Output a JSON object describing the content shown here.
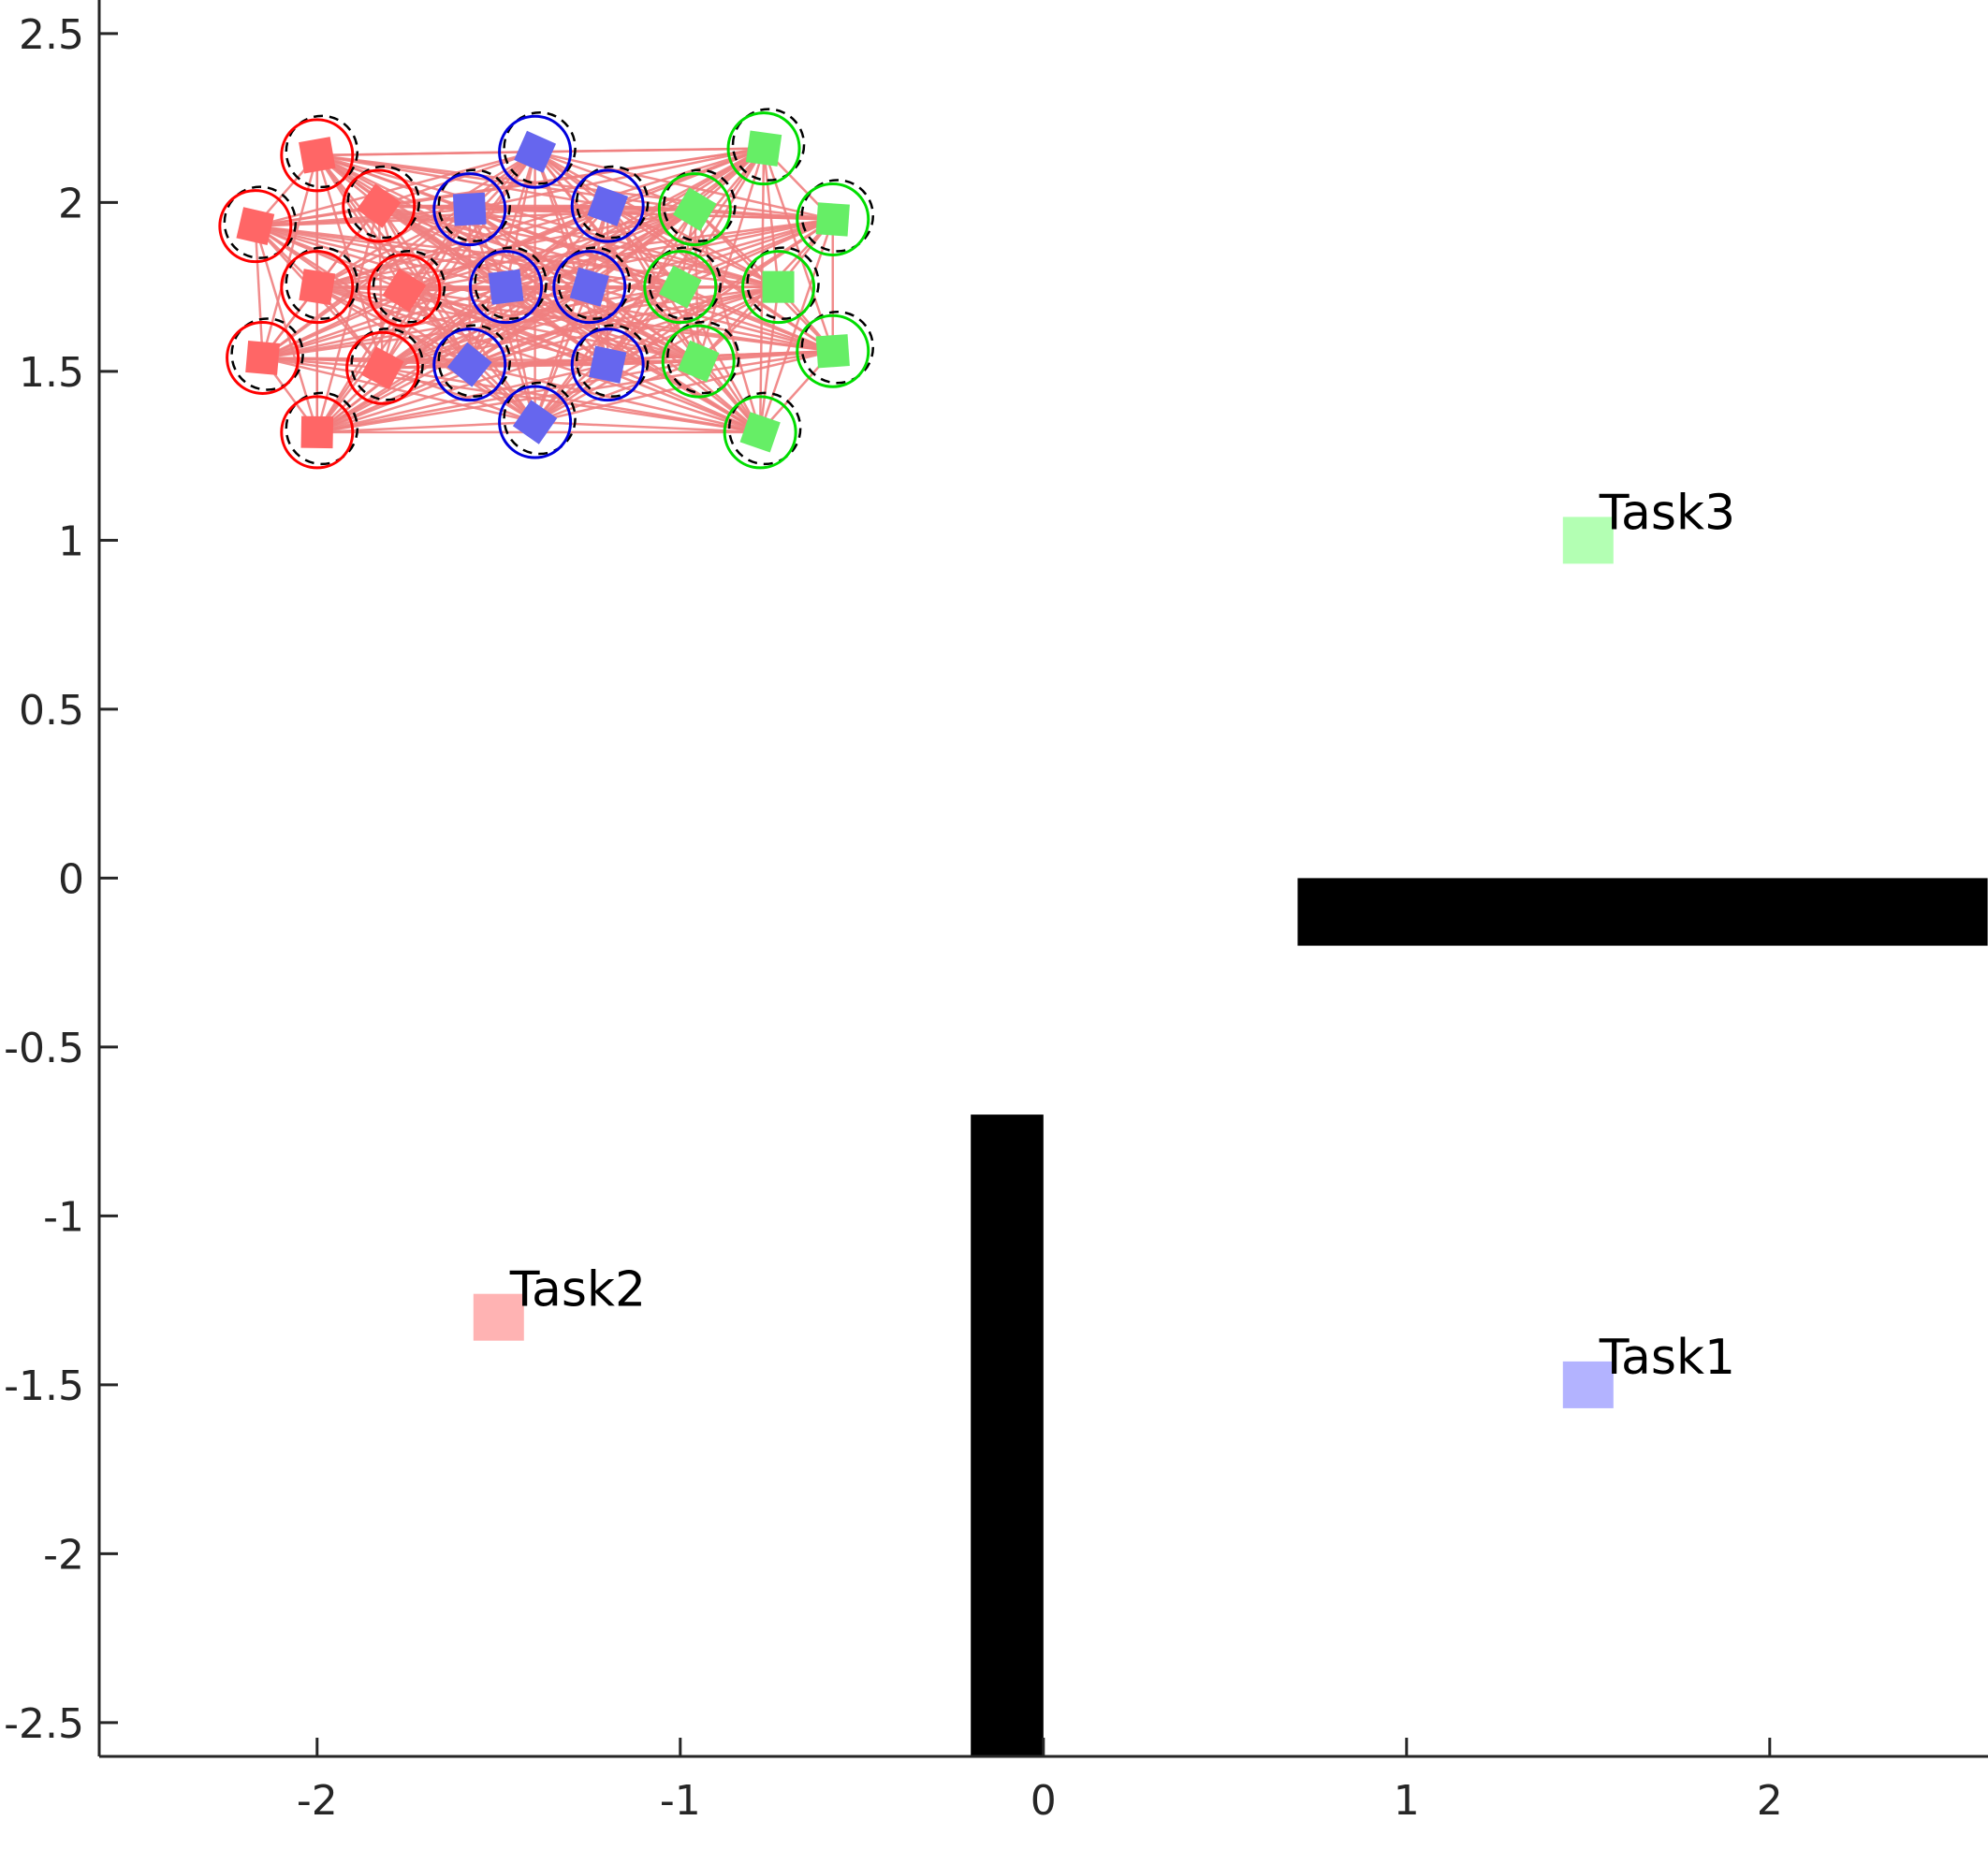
{
  "chart_data": {
    "type": "scatter",
    "xlim": [
      -2.6,
      2.6
    ],
    "ylim": [
      -2.6,
      2.6
    ],
    "xticks": [
      {
        "value": -2,
        "label": "-2"
      },
      {
        "value": -1,
        "label": "-1"
      },
      {
        "value": 0,
        "label": "0"
      },
      {
        "value": 1,
        "label": "1"
      },
      {
        "value": 2,
        "label": "2"
      }
    ],
    "yticks": [
      {
        "value": 2.5,
        "label": "2.5"
      },
      {
        "value": 2,
        "label": "2"
      },
      {
        "value": 1.5,
        "label": "1.5"
      },
      {
        "value": 1,
        "label": "1"
      },
      {
        "value": 0.5,
        "label": "0.5"
      },
      {
        "value": 0,
        "label": "0"
      },
      {
        "value": -0.5,
        "label": "-0.5"
      },
      {
        "value": -1,
        "label": "-1"
      },
      {
        "value": -1.5,
        "label": "-1.5"
      },
      {
        "value": -2,
        "label": "-2"
      },
      {
        "value": -2.5,
        "label": "-2.5"
      }
    ],
    "grid": false,
    "obstacles": [
      {
        "x_range": [
          0.7,
          2.6
        ],
        "y_range": [
          -0.2,
          0.0
        ],
        "color": "#000000"
      },
      {
        "x_range": [
          -0.2,
          0.0
        ],
        "y_range": [
          -2.6,
          -0.7
        ],
        "color": "#000000"
      }
    ],
    "tasks": [
      {
        "label": "Task1",
        "x": 1.5,
        "y": -1.5,
        "color": "#b3b3ff"
      },
      {
        "label": "Task2",
        "x": -1.5,
        "y": -1.3,
        "color": "#ffb3b3"
      },
      {
        "label": "Task3",
        "x": 1.5,
        "y": 1.0,
        "color": "#b3ffb3"
      }
    ],
    "link_color": "#f08080",
    "agent_groups": [
      {
        "color": "#ff0000",
        "fill": "#ff6666",
        "agents": [
          {
            "x": -2.0,
            "y": 2.14
          },
          {
            "x": -2.17,
            "y": 1.93
          },
          {
            "x": -1.83,
            "y": 1.99
          },
          {
            "x": -2.0,
            "y": 1.75
          },
          {
            "x": -1.76,
            "y": 1.74
          },
          {
            "x": -2.15,
            "y": 1.54
          },
          {
            "x": -1.82,
            "y": 1.51
          },
          {
            "x": -2.0,
            "y": 1.32
          }
        ]
      },
      {
        "color": "#0000dd",
        "fill": "#6666ee",
        "agents": [
          {
            "x": -1.4,
            "y": 2.15
          },
          {
            "x": -1.58,
            "y": 1.98
          },
          {
            "x": -1.2,
            "y": 1.99
          },
          {
            "x": -1.48,
            "y": 1.75
          },
          {
            "x": -1.25,
            "y": 1.75
          },
          {
            "x": -1.58,
            "y": 1.52
          },
          {
            "x": -1.2,
            "y": 1.52
          },
          {
            "x": -1.4,
            "y": 1.35
          }
        ]
      },
      {
        "color": "#00dd00",
        "fill": "#66ee66",
        "agents": [
          {
            "x": -0.77,
            "y": 2.16
          },
          {
            "x": -0.96,
            "y": 1.98
          },
          {
            "x": -0.58,
            "y": 1.95
          },
          {
            "x": -1.0,
            "y": 1.75
          },
          {
            "x": -0.73,
            "y": 1.75
          },
          {
            "x": -0.95,
            "y": 1.53
          },
          {
            "x": -0.58,
            "y": 1.56
          },
          {
            "x": -0.78,
            "y": 1.32
          }
        ]
      }
    ]
  }
}
